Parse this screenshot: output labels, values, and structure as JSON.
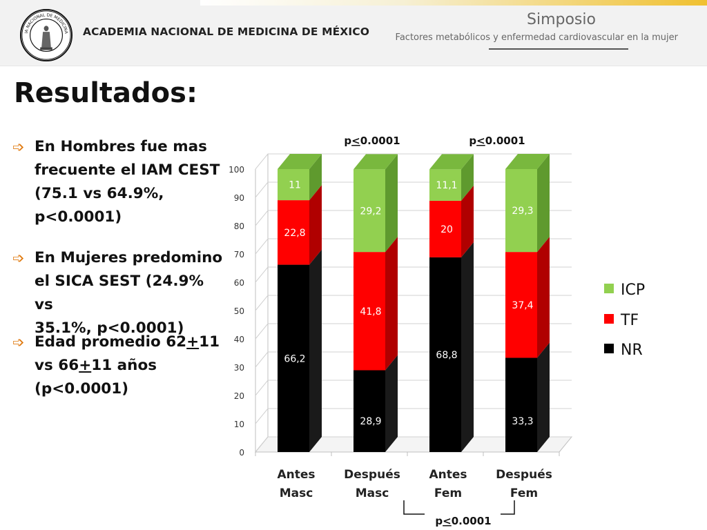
{
  "header": {
    "org_name": "ACADEMIA NACIONAL DE MEDICINA DE MÉXICO",
    "seal_ring_text": "ACADEMIA NACIONAL DE MEDICINA MÉXICO",
    "event_title": "Simposio",
    "event_subtitle": "Factores metabólicos y enfermedad cardiovascular en la mujer"
  },
  "slide": {
    "title": "Resultados:",
    "bullets": [
      {
        "lines": [
          [
            {
              "t": "En Hombres fue mas"
            }
          ],
          [
            {
              "t": "frecuente el IAM CEST"
            }
          ],
          [
            {
              "t": "(75.1 vs 64.9%,"
            }
          ],
          [
            {
              "t": "p<0.0001)"
            }
          ]
        ]
      },
      {
        "lines": [
          [
            {
              "t": "En Mujeres predomino"
            }
          ],
          [
            {
              "t": "el SICA SEST (24.9% vs"
            }
          ],
          [
            {
              "t": "35.1%, p<0.0001)"
            }
          ]
        ]
      },
      {
        "lines": [
          [
            {
              "t": "Edad promedio 62"
            },
            {
              "t": "+",
              "u": true
            },
            {
              "t": "11"
            }
          ],
          [
            {
              "t": "vs 66"
            },
            {
              "t": "+",
              "u": true
            },
            {
              "t": "11 años"
            }
          ],
          [
            {
              "t": "(p<0.0001)"
            }
          ]
        ]
      }
    ]
  },
  "colors": {
    "NR": "#000000",
    "TF": "#ff0000",
    "ICP": "#92d050",
    "bullet": "#e07a10"
  },
  "chart_data": {
    "type": "bar",
    "stacked": true,
    "three_d": true,
    "categories": [
      [
        "Antes",
        "Masc"
      ],
      [
        "Después",
        "Masc"
      ],
      [
        "Antes",
        "Fem"
      ],
      [
        "Después",
        "Fem"
      ]
    ],
    "series": [
      {
        "name": "NR",
        "values": [
          66.2,
          28.9,
          68.8,
          33.3
        ],
        "labels": [
          "66,2",
          "28,9",
          "68,8",
          "33,3"
        ]
      },
      {
        "name": "TF",
        "values": [
          22.8,
          41.8,
          20,
          37.4
        ],
        "labels": [
          "22,8",
          "41,8",
          "20",
          "37,4"
        ]
      },
      {
        "name": "ICP",
        "values": [
          11,
          29.2,
          11.1,
          29.3
        ],
        "labels": [
          "11",
          "29,2",
          "11,1",
          "29,3"
        ]
      }
    ],
    "ylim": [
      0,
      100
    ],
    "yticks": [
      0,
      10,
      20,
      30,
      40,
      50,
      60,
      70,
      80,
      90,
      100
    ],
    "legend_position": "right",
    "legend_order": [
      "ICP",
      "TF",
      "NR"
    ],
    "annotations": [
      {
        "pre": "p",
        "u": "<",
        "post": "0.0001",
        "over": "Antes Masc vs Después Masc"
      },
      {
        "pre": "p",
        "u": "<",
        "post": "0.0001",
        "over": "Antes Fem vs Después Fem"
      },
      {
        "pre": "p",
        "u": "<",
        "post": "0.0001",
        "under": "Después Masc vs Después Fem"
      }
    ]
  }
}
